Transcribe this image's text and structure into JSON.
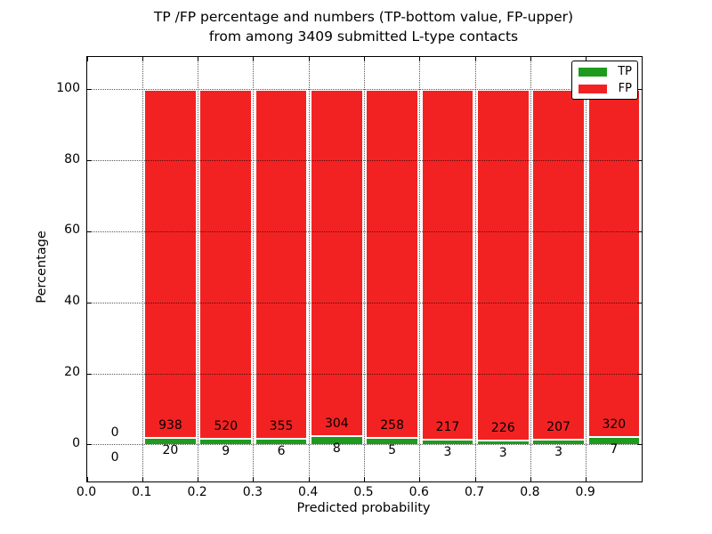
{
  "chart_data": {
    "type": "bar",
    "stacked": true,
    "title": "TP /FP percentage and numbers (TP-bottom value, FP-upper)",
    "subtitle": "from among 3409 submitted L-type contacts",
    "xlabel": "Predicted probability",
    "ylabel": "Percentage",
    "xlim": [
      0.0,
      1.0
    ],
    "ylim": [
      -10.3,
      109.2
    ],
    "x_tick_values": [
      0,
      0.1,
      0.2,
      0.3,
      0.4,
      0.5,
      0.6,
      0.7,
      0.8,
      0.9
    ],
    "x_tick_labels": [
      "0.0",
      "0.1",
      "0.2",
      "0.3",
      "0.4",
      "0.5",
      "0.6",
      "0.7",
      "0.8",
      "0.9"
    ],
    "y_tick_values": [
      0,
      20,
      40,
      60,
      80,
      100
    ],
    "y_tick_labels": [
      "0",
      "20",
      "40",
      "60",
      "80",
      "100"
    ],
    "grid": true,
    "bar_relative_width": 0.94,
    "colors": {
      "tp": "#1e9b1e",
      "fp": "#f32222",
      "bar_edge": "#ffffff"
    },
    "legend": {
      "position": "upper right",
      "entries": [
        {
          "label": "TP",
          "color": "#1e9b1e"
        },
        {
          "label": "FP",
          "color": "#f32222"
        }
      ]
    },
    "bins": [
      {
        "range": [
          0.0,
          0.1
        ],
        "tp": 0,
        "fp": 0
      },
      {
        "range": [
          0.1,
          0.2
        ],
        "tp": 20,
        "fp": 938
      },
      {
        "range": [
          0.2,
          0.3
        ],
        "tp": 9,
        "fp": 520
      },
      {
        "range": [
          0.3,
          0.4
        ],
        "tp": 6,
        "fp": 355
      },
      {
        "range": [
          0.4,
          0.5
        ],
        "tp": 8,
        "fp": 304
      },
      {
        "range": [
          0.5,
          0.6
        ],
        "tp": 5,
        "fp": 258
      },
      {
        "range": [
          0.6,
          0.7
        ],
        "tp": 3,
        "fp": 217
      },
      {
        "range": [
          0.7,
          0.8
        ],
        "tp": 3,
        "fp": 226
      },
      {
        "range": [
          0.8,
          0.9
        ],
        "tp": 3,
        "fp": 207
      },
      {
        "range": [
          0.9,
          1.0
        ],
        "tp": 7,
        "fp": 320
      }
    ]
  }
}
